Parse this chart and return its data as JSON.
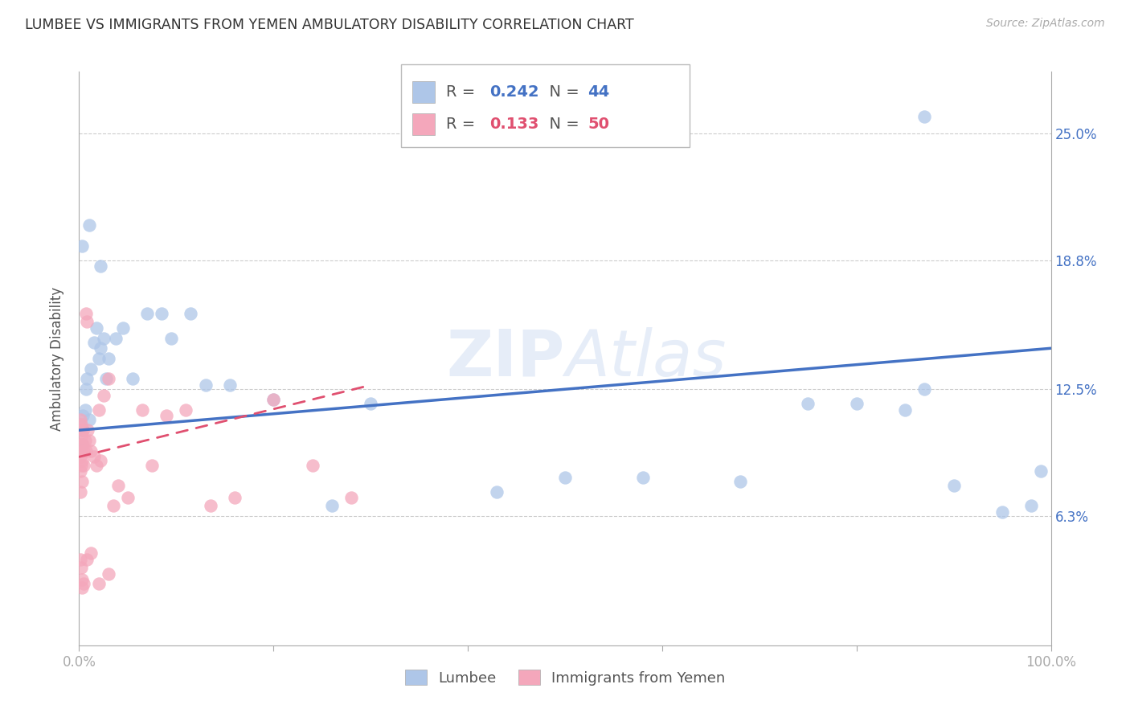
{
  "title": "LUMBEE VS IMMIGRANTS FROM YEMEN AMBULATORY DISABILITY CORRELATION CHART",
  "source": "Source: ZipAtlas.com",
  "ylabel": "Ambulatory Disability",
  "ytick_labels": [
    "6.3%",
    "12.5%",
    "18.8%",
    "25.0%"
  ],
  "ytick_values": [
    0.063,
    0.125,
    0.188,
    0.25
  ],
  "legend_lumbee": {
    "R": "0.242",
    "N": "44"
  },
  "legend_yemen": {
    "R": "0.133",
    "N": "50"
  },
  "watermark": "ZIPAtlas",
  "lumbee_color": "#aec6e8",
  "lumbee_line_color": "#4472c4",
  "yemen_color": "#f4a7bb",
  "yemen_line_color": "#e05070",
  "lumbee_points_x": [
    0.001,
    0.002,
    0.003,
    0.004,
    0.006,
    0.007,
    0.008,
    0.01,
    0.012,
    0.015,
    0.018,
    0.02,
    0.022,
    0.025,
    0.028,
    0.03,
    0.038,
    0.045,
    0.055,
    0.07,
    0.085,
    0.095,
    0.115,
    0.13,
    0.155,
    0.2,
    0.26,
    0.3,
    0.43,
    0.5,
    0.58,
    0.68,
    0.75,
    0.8,
    0.85,
    0.87,
    0.9,
    0.95,
    0.98,
    0.99,
    0.003,
    0.01,
    0.022,
    0.87
  ],
  "lumbee_points_y": [
    0.108,
    0.105,
    0.098,
    0.112,
    0.115,
    0.125,
    0.13,
    0.11,
    0.135,
    0.148,
    0.155,
    0.14,
    0.145,
    0.15,
    0.13,
    0.14,
    0.15,
    0.155,
    0.13,
    0.162,
    0.162,
    0.15,
    0.162,
    0.127,
    0.127,
    0.12,
    0.068,
    0.118,
    0.075,
    0.082,
    0.082,
    0.08,
    0.118,
    0.118,
    0.115,
    0.125,
    0.078,
    0.065,
    0.068,
    0.085,
    0.195,
    0.205,
    0.185,
    0.258
  ],
  "yemen_points_x": [
    0.001,
    0.001,
    0.001,
    0.001,
    0.002,
    0.002,
    0.002,
    0.003,
    0.003,
    0.004,
    0.004,
    0.005,
    0.005,
    0.006,
    0.007,
    0.008,
    0.009,
    0.01,
    0.012,
    0.015,
    0.018,
    0.02,
    0.022,
    0.025,
    0.03,
    0.035,
    0.04,
    0.05,
    0.065,
    0.075,
    0.09,
    0.11,
    0.135,
    0.16,
    0.2,
    0.24,
    0.28,
    0.001,
    0.002,
    0.003,
    0.005,
    0.008,
    0.012,
    0.02,
    0.03,
    0.001,
    0.002,
    0.004,
    0.007,
    0.003
  ],
  "yemen_points_y": [
    0.098,
    0.092,
    0.085,
    0.075,
    0.088,
    0.095,
    0.102,
    0.08,
    0.09,
    0.098,
    0.105,
    0.088,
    0.095,
    0.1,
    0.162,
    0.158,
    0.105,
    0.1,
    0.095,
    0.092,
    0.088,
    0.115,
    0.09,
    0.122,
    0.13,
    0.068,
    0.078,
    0.072,
    0.115,
    0.088,
    0.112,
    0.115,
    0.068,
    0.072,
    0.12,
    0.088,
    0.072,
    0.042,
    0.038,
    0.032,
    0.03,
    0.042,
    0.045,
    0.03,
    0.035,
    0.11,
    0.108,
    0.105,
    0.095,
    0.028
  ],
  "xlim": [
    0.0,
    1.0
  ],
  "ylim": [
    0.0,
    0.28
  ],
  "lumbee_line_x": [
    0.0,
    1.0
  ],
  "lumbee_line_y": [
    0.105,
    0.145
  ],
  "yemen_line_x": [
    0.0,
    0.3
  ],
  "yemen_line_y": [
    0.092,
    0.127
  ]
}
